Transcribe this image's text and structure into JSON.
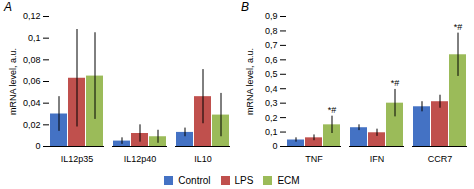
{
  "chart_data": [
    {
      "type": "bar",
      "title": "A",
      "categories": [
        "IL12p35",
        "IL12p40",
        "IL10"
      ],
      "series": [
        {
          "name": "Control",
          "color": "#4472C4",
          "values": [
            0.03,
            0.005,
            0.013
          ],
          "errors": [
            0.016,
            0.003,
            0.004
          ]
        },
        {
          "name": "LPS",
          "color": "#C0504D",
          "values": [
            0.063,
            0.012,
            0.046
          ],
          "errors": [
            0.045,
            0.008,
            0.025
          ]
        },
        {
          "name": "ECM",
          "color": "#9BBB59",
          "values": [
            0.065,
            0.009,
            0.029
          ],
          "errors": [
            0.04,
            0.006,
            0.02
          ]
        }
      ],
      "ylabel": "mRNA level, a.u.",
      "ylim": [
        0,
        0.12
      ],
      "yticks": [
        0,
        {
          "value": 0.02,
          "label": "0,02"
        },
        {
          "value": 0.04,
          "label": "0,04"
        },
        {
          "value": 0.06,
          "label": "0,06"
        },
        {
          "value": 0.08,
          "label": "0,08"
        },
        {
          "value": 0.1,
          "label": "0,1"
        },
        {
          "value": 0.12,
          "label": "0,12"
        }
      ],
      "grid": false,
      "legend": "bottom"
    },
    {
      "type": "bar",
      "title": "B",
      "categories": [
        "TNF",
        "IFN",
        "CCR7"
      ],
      "series": [
        {
          "name": "Control",
          "color": "#4472C4",
          "values": [
            0.045,
            0.13,
            0.275
          ],
          "errors": [
            0.015,
            0.02,
            0.035
          ]
        },
        {
          "name": "LPS",
          "color": "#C0504D",
          "values": [
            0.06,
            0.095,
            0.31
          ],
          "errors": [
            0.02,
            0.025,
            0.045
          ]
        },
        {
          "name": "ECM",
          "color": "#9BBB59",
          "values": [
            0.15,
            0.3,
            0.635
          ],
          "errors": [
            0.06,
            0.095,
            0.15
          ]
        }
      ],
      "ylabel": "mRNA level, a.u.",
      "ylim": [
        0,
        0.9
      ],
      "yticks": [
        0,
        {
          "value": 0.1,
          "label": "0,1"
        },
        {
          "value": 0.2,
          "label": "0,2"
        },
        {
          "value": 0.3,
          "label": "0,3"
        },
        {
          "value": 0.4,
          "label": "0,4"
        },
        {
          "value": 0.5,
          "label": "0,5"
        },
        {
          "value": 0.6,
          "label": "0,6"
        },
        {
          "value": 0.7,
          "label": "0,7"
        },
        {
          "value": 0.8,
          "label": "0,8"
        },
        {
          "value": 0.9,
          "label": "0,9"
        }
      ],
      "annotations": [
        {
          "series": "ECM",
          "category": "TNF",
          "text": "*#"
        },
        {
          "series": "ECM",
          "category": "IFN",
          "text": "*#"
        },
        {
          "series": "ECM",
          "category": "CCR7",
          "text": "*#"
        }
      ],
      "grid": false,
      "legend": "bottom"
    }
  ]
}
